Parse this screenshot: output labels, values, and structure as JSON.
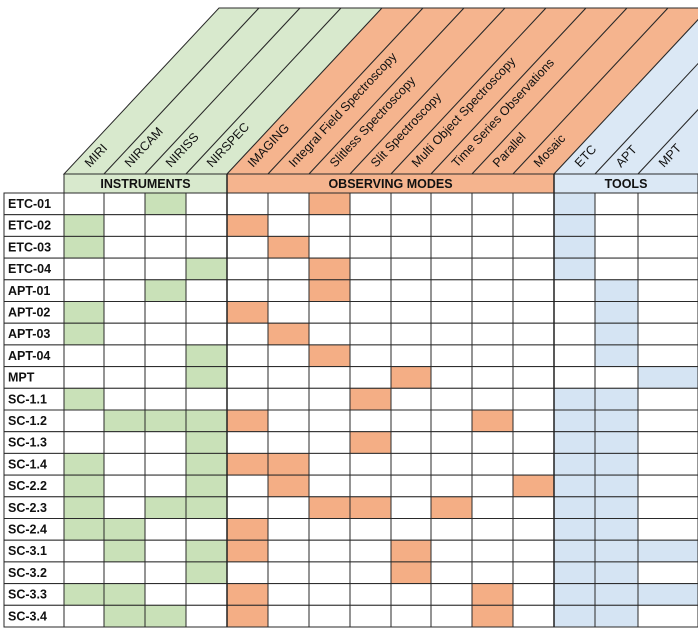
{
  "colors": {
    "instruments": "#d8e9cd",
    "modes": "#f5b48e",
    "tools": "#dbe8f5",
    "cell_instruments": "#c9e1b8",
    "cell_modes": "#f4ae85",
    "cell_tools": "#d5e4f3",
    "grid": "#000000"
  },
  "columns": [
    {
      "label": "MIRI",
      "group": "instruments"
    },
    {
      "label": "NIRCAM",
      "group": "instruments"
    },
    {
      "label": "NIRISS",
      "group": "instruments"
    },
    {
      "label": "NIRSPEC",
      "group": "instruments"
    },
    {
      "label": "IMAGING",
      "group": "modes"
    },
    {
      "label": "Integral Field Spectroscopy",
      "group": "modes"
    },
    {
      "label": "Slitless Spectroscopy",
      "group": "modes"
    },
    {
      "label": "Slit Spectroscopy",
      "group": "modes"
    },
    {
      "label": "Multi Object Spectroscopy",
      "group": "modes"
    },
    {
      "label": "Time Series Observations",
      "group": "modes"
    },
    {
      "label": "Parallel",
      "group": "modes"
    },
    {
      "label": "Mosaic",
      "group": "modes"
    },
    {
      "label": "ETC",
      "group": "tools"
    },
    {
      "label": "APT",
      "group": "tools"
    },
    {
      "label": "MPT",
      "group": "tools"
    }
  ],
  "groups": [
    {
      "key": "instruments",
      "label": "INSTRUMENTS"
    },
    {
      "key": "modes",
      "label": "OBSERVING MODES"
    },
    {
      "key": "tools",
      "label": "TOOLS"
    }
  ],
  "rows": [
    {
      "label": "ETC-01",
      "cells": [
        2,
        6,
        12
      ]
    },
    {
      "label": "ETC-02",
      "cells": [
        0,
        4,
        12
      ]
    },
    {
      "label": "ETC-03",
      "cells": [
        0,
        5,
        12
      ]
    },
    {
      "label": "ETC-04",
      "cells": [
        3,
        6,
        12
      ]
    },
    {
      "label": "APT-01",
      "cells": [
        2,
        6,
        13
      ]
    },
    {
      "label": "APT-02",
      "cells": [
        0,
        4,
        13
      ]
    },
    {
      "label": "APT-03",
      "cells": [
        0,
        5,
        13
      ]
    },
    {
      "label": "APT-04",
      "cells": [
        3,
        6,
        13
      ]
    },
    {
      "label": "MPT",
      "cells": [
        3,
        8,
        14
      ]
    },
    {
      "label": "SC-1.1",
      "cells": [
        0,
        7,
        12,
        13
      ]
    },
    {
      "label": "SC-1.2",
      "cells": [
        1,
        2,
        3,
        4,
        10,
        12,
        13
      ]
    },
    {
      "label": "SC-1.3",
      "cells": [
        3,
        7,
        12,
        13
      ]
    },
    {
      "label": "SC-1.4",
      "cells": [
        0,
        3,
        4,
        5,
        12,
        13
      ]
    },
    {
      "label": "SC-2.2",
      "cells": [
        0,
        3,
        5,
        11,
        12,
        13
      ]
    },
    {
      "label": "SC-2.3",
      "cells": [
        0,
        2,
        3,
        6,
        7,
        9,
        12,
        13
      ]
    },
    {
      "label": "SC-2.4",
      "cells": [
        0,
        1,
        4,
        12,
        13
      ]
    },
    {
      "label": "SC-3.1",
      "cells": [
        1,
        3,
        4,
        8,
        12,
        13,
        14
      ]
    },
    {
      "label": "SC-3.2",
      "cells": [
        3,
        8,
        12,
        13
      ]
    },
    {
      "label": "SC-3.3",
      "cells": [
        0,
        1,
        4,
        10,
        12,
        13,
        14
      ]
    },
    {
      "label": "SC-3.4",
      "cells": [
        1,
        2,
        4,
        10,
        12,
        13
      ]
    }
  ]
}
